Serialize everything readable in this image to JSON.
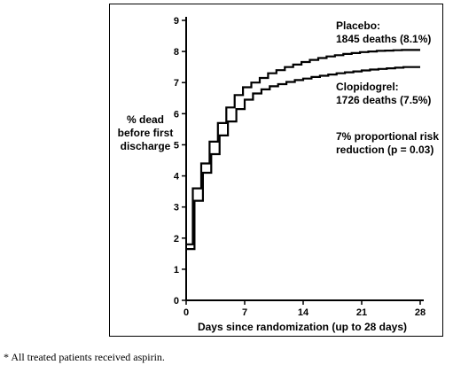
{
  "chart_data": {
    "type": "line",
    "title": "",
    "xlabel": "Days since randomization (up to 28 days)",
    "ylabel_lines": [
      "% dead",
      "before first",
      "discharge"
    ],
    "xlim": [
      0,
      28
    ],
    "ylim": [
      0,
      9
    ],
    "xticks": [
      0,
      7,
      14,
      21,
      28
    ],
    "yticks": [
      0,
      1,
      2,
      3,
      4,
      5,
      6,
      7,
      8,
      9
    ],
    "grid": false,
    "step": true,
    "series": [
      {
        "name": "Placebo",
        "label_lines": [
          "Placebo:",
          "1845 deaths  (8.1%)"
        ],
        "color": "#000000",
        "x": [
          0,
          0.8,
          1.8,
          2.8,
          3.8,
          4.8,
          5.8,
          6.8,
          7.8,
          8.8,
          9.8,
          10.8,
          11.8,
          12.8,
          13.8,
          14.8,
          15.8,
          16.8,
          17.8,
          18.8,
          19.8,
          20.8,
          21.8,
          22.8,
          23.8,
          24.8,
          25.8,
          26.8,
          28
        ],
        "y": [
          1.8,
          3.6,
          4.4,
          5.1,
          5.7,
          6.2,
          6.6,
          6.85,
          7.0,
          7.15,
          7.3,
          7.4,
          7.5,
          7.58,
          7.66,
          7.73,
          7.79,
          7.84,
          7.88,
          7.92,
          7.95,
          7.98,
          8.0,
          8.02,
          8.03,
          8.04,
          8.05,
          8.05,
          8.05
        ]
      },
      {
        "name": "Clopidogrel",
        "label_lines": [
          "Clopidogrel:",
          "1726 deaths  (7.5%)"
        ],
        "color": "#000000",
        "x": [
          0,
          1.0,
          2.0,
          3.0,
          4.0,
          5.0,
          6.0,
          7.0,
          8.0,
          9.0,
          10.0,
          11.0,
          12.0,
          13.0,
          14.0,
          15.0,
          16.0,
          17.0,
          18.0,
          19.0,
          20.0,
          21.0,
          22.0,
          23.0,
          24.0,
          25.0,
          26.0,
          27.0,
          28
        ],
        "y": [
          1.65,
          3.2,
          4.1,
          4.7,
          5.3,
          5.75,
          6.15,
          6.45,
          6.65,
          6.78,
          6.88,
          6.95,
          7.02,
          7.08,
          7.13,
          7.18,
          7.22,
          7.26,
          7.3,
          7.33,
          7.36,
          7.39,
          7.42,
          7.44,
          7.46,
          7.48,
          7.5,
          7.5,
          7.5
        ]
      }
    ],
    "annotation_lines": [
      "7% proportional risk",
      "reduction  (p = 0.03)"
    ]
  },
  "footnote": "* All treated patients received aspirin."
}
